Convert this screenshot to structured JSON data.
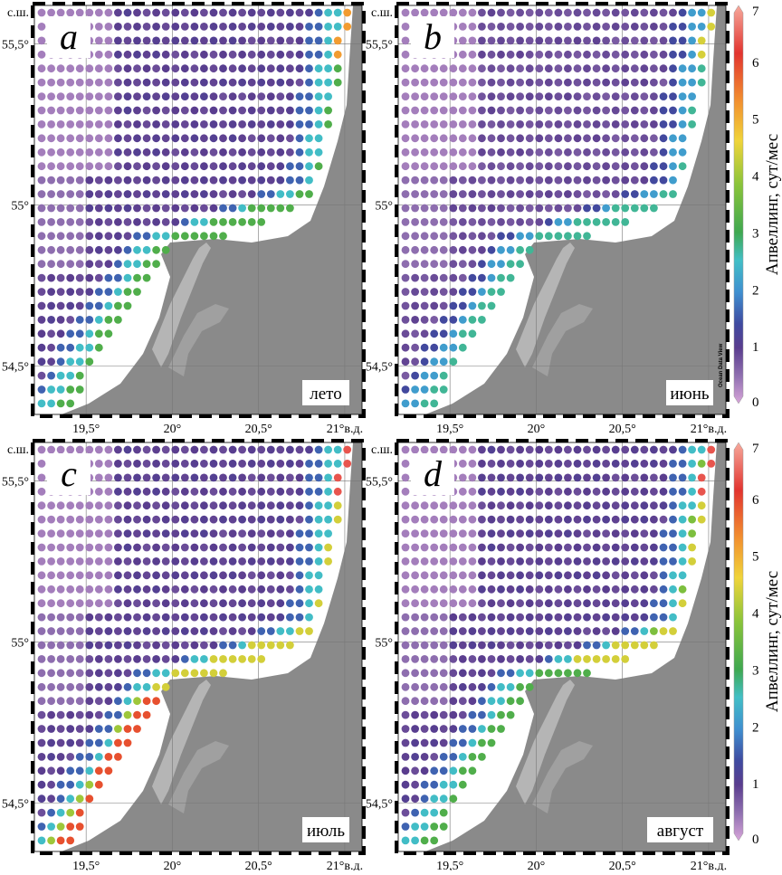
{
  "chart_data": {
    "type": "heatmap",
    "panels": [
      {
        "letter": "a",
        "season_label": "лето"
      },
      {
        "letter": "b",
        "season_label": "июнь"
      },
      {
        "letter": "c",
        "season_label": "июль"
      },
      {
        "letter": "d",
        "season_label": "август"
      }
    ],
    "x_tick_labels": [
      "19,5°",
      "20°",
      "20,5°",
      "21°в.д."
    ],
    "x_tick_values": [
      19.5,
      20.0,
      20.5,
      21.0
    ],
    "y_tick_labels": [
      "54,5°",
      "55°",
      "55,5°"
    ],
    "y_tick_values": [
      54.5,
      55.0,
      55.5
    ],
    "y_axis_unit_label": "с.ш.",
    "xlim": [
      19.2,
      21.1
    ],
    "ylim": [
      54.35,
      55.62
    ],
    "colorbar": {
      "label": "Апвеллинг, сут/мес",
      "ticks": [
        "0",
        "1",
        "2",
        "3",
        "4",
        "5",
        "6",
        "7"
      ],
      "range": [
        0,
        7
      ],
      "colors": [
        "#d7a5d9",
        "#8f6fb0",
        "#5a3d8e",
        "#3f4aa0",
        "#3f8fd0",
        "#42bfc6",
        "#3fa850",
        "#8ac43a",
        "#f0d43a",
        "#f2902f",
        "#e2342f",
        "#f6a99c"
      ]
    },
    "credit": "Ocean Data View"
  }
}
